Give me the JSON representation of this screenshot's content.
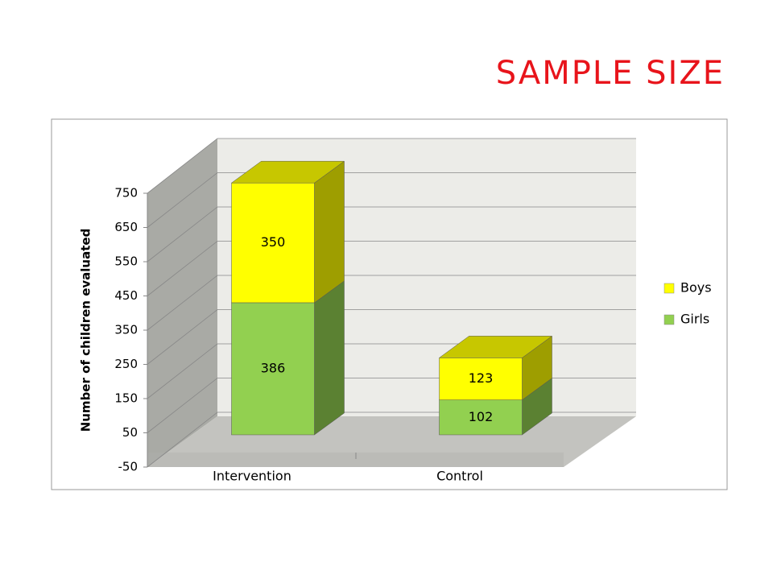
{
  "title": "SAMPLE SIZE",
  "chart_data": {
    "type": "bar3d-stacked",
    "ylabel": "Number of children evaluated",
    "categories": [
      "Intervention",
      "Control"
    ],
    "series": [
      {
        "name": "Girls",
        "color": "#92d050",
        "values": [
          386,
          102
        ]
      },
      {
        "name": "Boys",
        "color": "#ffff00",
        "values": [
          350,
          123
        ]
      }
    ],
    "ylim": [
      -50,
      750
    ],
    "yticks": [
      -50,
      50,
      150,
      250,
      350,
      450,
      550,
      650,
      750
    ],
    "grid": true,
    "legend": "right"
  }
}
